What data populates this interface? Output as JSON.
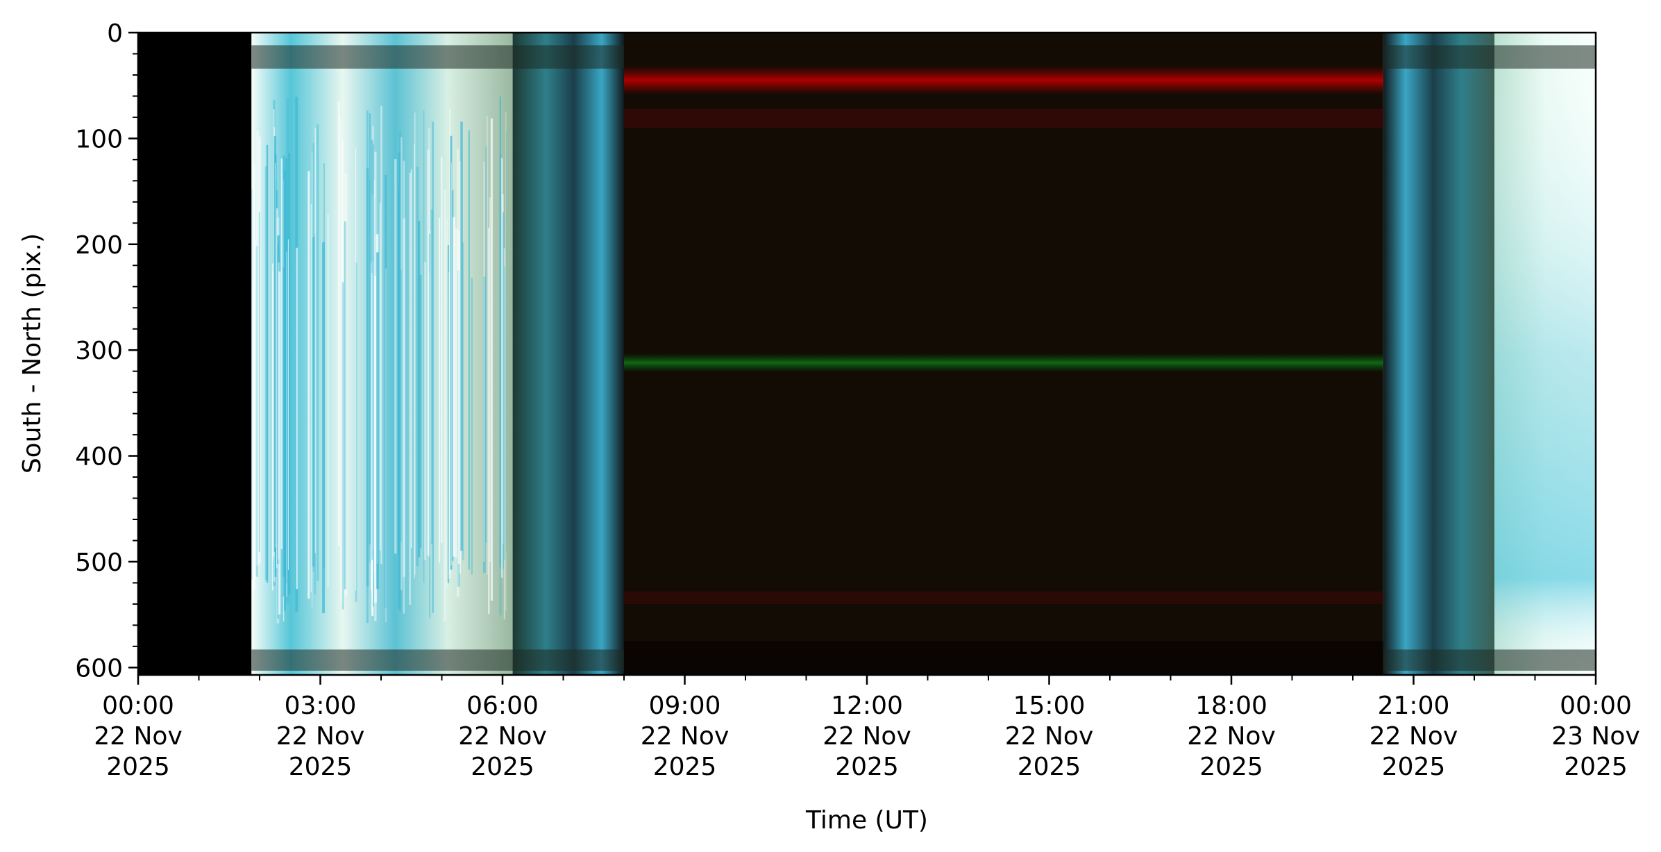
{
  "chart_data": {
    "type": "heatmap",
    "title": "",
    "xlabel": "Time (UT)",
    "ylabel": "South - North (pix.)",
    "x_range": [
      "2025-11-22 00:00",
      "2025-11-23 00:00"
    ],
    "ylim": [
      607,
      0
    ],
    "y_inverted": true,
    "y_ticks": [
      0,
      100,
      200,
      300,
      400,
      500,
      600
    ],
    "x_ticks": [
      {
        "time": "2025-11-22 00:00",
        "line1": "00:00",
        "line2": "22 Nov",
        "line3": "2025"
      },
      {
        "time": "2025-11-22 03:00",
        "line1": "03:00",
        "line2": "22 Nov",
        "line3": "2025"
      },
      {
        "time": "2025-11-22 06:00",
        "line1": "06:00",
        "line2": "22 Nov",
        "line3": "2025"
      },
      {
        "time": "2025-11-22 09:00",
        "line1": "09:00",
        "line2": "22 Nov",
        "line3": "2025"
      },
      {
        "time": "2025-11-22 12:00",
        "line1": "12:00",
        "line2": "22 Nov",
        "line3": "2025"
      },
      {
        "time": "2025-11-22 15:00",
        "line1": "15:00",
        "line2": "22 Nov",
        "line3": "2025"
      },
      {
        "time": "2025-11-22 18:00",
        "line1": "18:00",
        "line2": "22 Nov",
        "line3": "2025"
      },
      {
        "time": "2025-11-22 21:00",
        "line1": "21:00",
        "line2": "22 Nov",
        "line3": "2025"
      },
      {
        "time": "2025-11-23 00:00",
        "line1": "00:00",
        "line2": "23 Nov",
        "line3": "2025"
      }
    ],
    "segments": [
      {
        "name": "no-data",
        "start": "2025-11-22 00:00",
        "end": "2025-11-22 01:52",
        "color": "#000000"
      },
      {
        "name": "bright-sky-morning",
        "start": "2025-11-22 01:52",
        "end": "2025-11-22 06:10",
        "color": "#f4fbf6"
      },
      {
        "name": "twilight-morning",
        "start": "2025-11-22 06:10",
        "end": "2025-11-22 08:00",
        "color": "#2a6f7a"
      },
      {
        "name": "dark-night",
        "start": "2025-11-22 08:00",
        "end": "2025-11-22 20:30",
        "color": "#120c04"
      },
      {
        "name": "twilight-evening",
        "start": "2025-11-22 20:30",
        "end": "2025-11-22 22:20",
        "color": "#2a6f7a"
      },
      {
        "name": "bright-sky-evening",
        "start": "2025-11-22 22:20",
        "end": "2025-11-23 00:00",
        "color": "#e8f8f2"
      }
    ],
    "emission_bands": [
      {
        "name": "red-band",
        "y_center": 45,
        "start": "2025-11-22 08:00",
        "end": "2025-11-22 20:30",
        "color": "#a00000"
      },
      {
        "name": "green-band",
        "y_center": 312,
        "start": "2025-11-22 08:00",
        "end": "2025-11-22 20:30",
        "color": "#0b5a10"
      }
    ]
  }
}
